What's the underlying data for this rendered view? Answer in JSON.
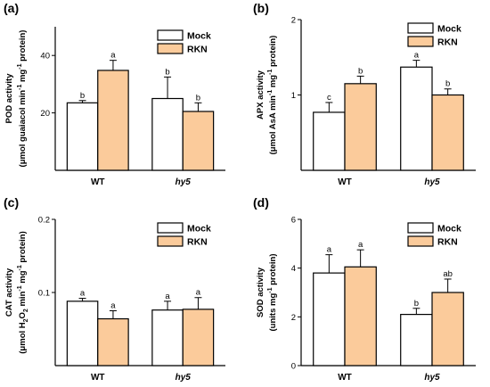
{
  "colors": {
    "mock": "#ffffff",
    "rkn": "#fbcb9b"
  },
  "chart_data": [
    {
      "panel": "(a)",
      "type": "bar",
      "categories": [
        "WT",
        "hy5"
      ],
      "ylabel_line1": "POD activity",
      "ylabel_line2_parts": [
        {
          "t": "(μmol guaiacol min"
        },
        {
          "t": "-1",
          "sup": true
        },
        {
          "t": " mg"
        },
        {
          "t": "-1",
          "sup": true
        },
        {
          "t": " protein)"
        }
      ],
      "ylim": [
        0,
        50
      ],
      "yticks": [
        20,
        40
      ],
      "legend": [
        "Mock",
        "RKN"
      ],
      "series": [
        {
          "name": "Mock",
          "values": [
            23.5,
            25
          ],
          "errors": [
            0.8,
            7.5
          ],
          "letters": [
            "b",
            "b"
          ]
        },
        {
          "name": "RKN",
          "values": [
            34.8,
            20.5
          ],
          "errors": [
            3.5,
            3
          ],
          "letters": [
            "a",
            "b"
          ]
        }
      ]
    },
    {
      "panel": "(b)",
      "type": "bar",
      "categories": [
        "WT",
        "hy5"
      ],
      "ylabel_line1": "APX activity",
      "ylabel_line2_parts": [
        {
          "t": "(μmol AsA min"
        },
        {
          "t": "-1",
          "sup": true
        },
        {
          "t": " mg"
        },
        {
          "t": "-1",
          "sup": true
        },
        {
          "t": " protein)"
        }
      ],
      "ylim": [
        0,
        2
      ],
      "yticks": [
        1,
        2
      ],
      "legend": [
        "Mock",
        "RKN"
      ],
      "series": [
        {
          "name": "Mock",
          "values": [
            0.77,
            1.37
          ],
          "errors": [
            0.13,
            0.09
          ],
          "letters": [
            "c",
            "a"
          ]
        },
        {
          "name": "RKN",
          "values": [
            1.15,
            1.0
          ],
          "errors": [
            0.1,
            0.08
          ],
          "letters": [
            "b",
            "b"
          ]
        }
      ]
    },
    {
      "panel": "(c)",
      "type": "bar",
      "categories": [
        "WT",
        "hy5"
      ],
      "ylabel_line1": "CAT activity",
      "ylabel_line2_parts": [
        {
          "t": "(μmol H"
        },
        {
          "t": "2",
          "sub": true
        },
        {
          "t": "O"
        },
        {
          "t": "2",
          "sub": true
        },
        {
          "t": " min"
        },
        {
          "t": "-1",
          "sup": true
        },
        {
          "t": " mg"
        },
        {
          "t": "-1",
          "sup": true
        },
        {
          "t": " protein)"
        }
      ],
      "ylim": [
        0,
        0.2
      ],
      "yticks": [
        0.1,
        0.2
      ],
      "legend": [
        "Mock",
        "RKN"
      ],
      "series": [
        {
          "name": "Mock",
          "values": [
            0.088,
            0.076
          ],
          "errors": [
            0.004,
            0.012
          ],
          "letters": [
            "a",
            "a"
          ]
        },
        {
          "name": "RKN",
          "values": [
            0.064,
            0.077
          ],
          "errors": [
            0.011,
            0.016
          ],
          "letters": [
            "a",
            "a"
          ]
        }
      ]
    },
    {
      "panel": "(d)",
      "type": "bar",
      "categories": [
        "WT",
        "hy5"
      ],
      "ylabel_line1": "SOD activity",
      "ylabel_line2_parts": [
        {
          "t": "(units mg"
        },
        {
          "t": "-1",
          "sup": true
        },
        {
          "t": " protein)"
        }
      ],
      "ylim": [
        0,
        6
      ],
      "yticks": [
        0,
        2,
        4,
        6
      ],
      "legend": [
        "Mock",
        "RKN"
      ],
      "series": [
        {
          "name": "Mock",
          "values": [
            3.8,
            2.1
          ],
          "errors": [
            0.75,
            0.25
          ],
          "letters": [
            "a",
            "b"
          ]
        },
        {
          "name": "RKN",
          "values": [
            4.05,
            3.0
          ],
          "errors": [
            0.7,
            0.55
          ],
          "letters": [
            "a",
            "ab"
          ]
        }
      ]
    }
  ]
}
